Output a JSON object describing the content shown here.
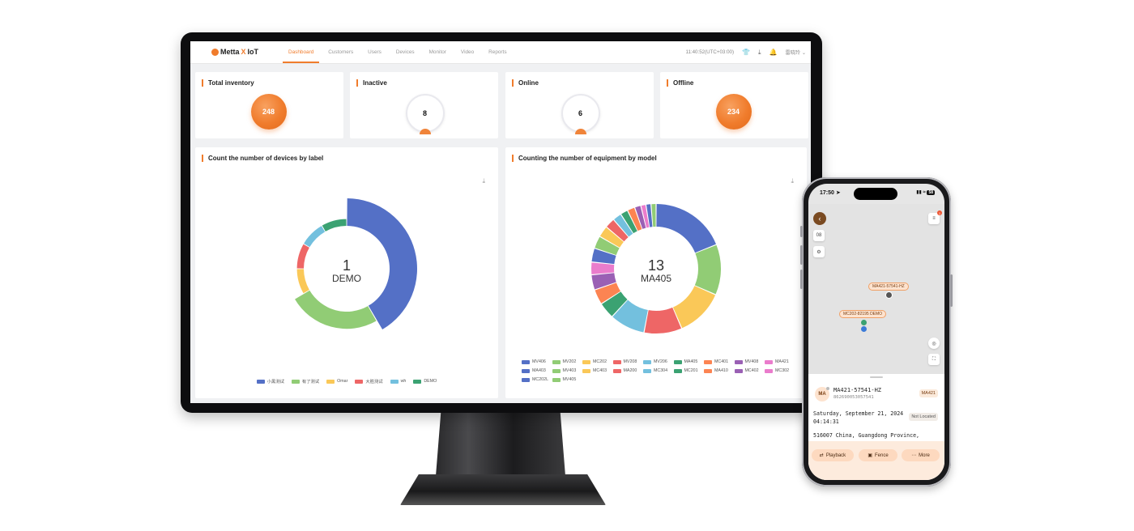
{
  "app": {
    "logo_text": "Metta",
    "logo_x": "X",
    "logo_suffix": " IoT"
  },
  "nav": {
    "tabs": [
      "Dashboard",
      "Customers",
      "Users",
      "Devices",
      "Monitor",
      "Video",
      "Reports"
    ],
    "active": "Dashboard",
    "time": "11:40:52(UTC+03:00)",
    "user": "雷晓玲",
    "icons": [
      "shirt-icon",
      "download-icon",
      "bell-icon",
      "chevron-down-icon"
    ]
  },
  "kpis": [
    {
      "title": "Total inventory",
      "value": "248",
      "style": "filled"
    },
    {
      "title": "Inactive",
      "value": "8",
      "style": "ring"
    },
    {
      "title": "Online",
      "value": "6",
      "style": "ring"
    },
    {
      "title": "Offline",
      "value": "234",
      "style": "filled"
    }
  ],
  "panels": {
    "label_title": "Count the number of devices by label",
    "model_title": "Counting the number of equipment by model"
  },
  "chart_data": [
    {
      "type": "pie",
      "variant": "rose-donut",
      "title": "Count the number of devices by label",
      "center": {
        "value": "1",
        "label": "DEMO"
      },
      "legend_position": "bottom-center",
      "categories": [
        "小黑测试",
        "有了测试",
        "Omar",
        "大胜测试",
        "wh",
        "DEMO"
      ],
      "values": [
        5,
        3,
        1,
        1,
        1,
        1
      ],
      "colors": [
        "#5470c6",
        "#91cc75",
        "#fac858",
        "#ee6666",
        "#73c0de",
        "#3ba272"
      ]
    },
    {
      "type": "pie",
      "variant": "donut",
      "title": "Counting the number of equipment by model",
      "center": {
        "value": "13",
        "label": "MA405"
      },
      "legend_position": "bottom",
      "categories": [
        "MV406",
        "MV202",
        "MC202",
        "MV208",
        "MV206",
        "MA405",
        "MC401",
        "MV408",
        "MA421",
        "MA403",
        "MV403",
        "MC403",
        "MA200",
        "MC304",
        "MC201",
        "MA410",
        "MC402",
        "MC302",
        "MC202L",
        "MV405"
      ],
      "values": [
        60,
        40,
        38,
        30,
        28,
        13,
        12,
        12,
        10,
        11,
        10,
        9,
        8,
        7,
        6,
        6,
        5,
        4,
        4,
        4
      ],
      "colors": [
        "#5470c6",
        "#91cc75",
        "#fac858",
        "#ee6666",
        "#73c0de",
        "#3ba272",
        "#fc8452",
        "#9a60b4",
        "#ea7ccc",
        "#5470c6",
        "#91cc75",
        "#fac858",
        "#ee6666",
        "#73c0de",
        "#3ba272",
        "#fc8452",
        "#9a60b4",
        "#ea7ccc",
        "#5470c6",
        "#91cc75"
      ]
    }
  ],
  "phone": {
    "time": "17:50",
    "battery": "58",
    "map_button": "08",
    "notification_count": "1",
    "tags": [
      "MA421-57541-HZ",
      "MC202-82195 DEMO"
    ],
    "device": {
      "avatar": "MA",
      "name": "MA421-57541-HZ",
      "imei": "862690053057541",
      "model": "MA421",
      "date": "Saturday, September 21, 2024",
      "time": "04:14:31",
      "status": "Not Located",
      "address": "516007 China, Guangdong Province,"
    },
    "actions": [
      "Playback",
      "Fence",
      "More"
    ]
  }
}
